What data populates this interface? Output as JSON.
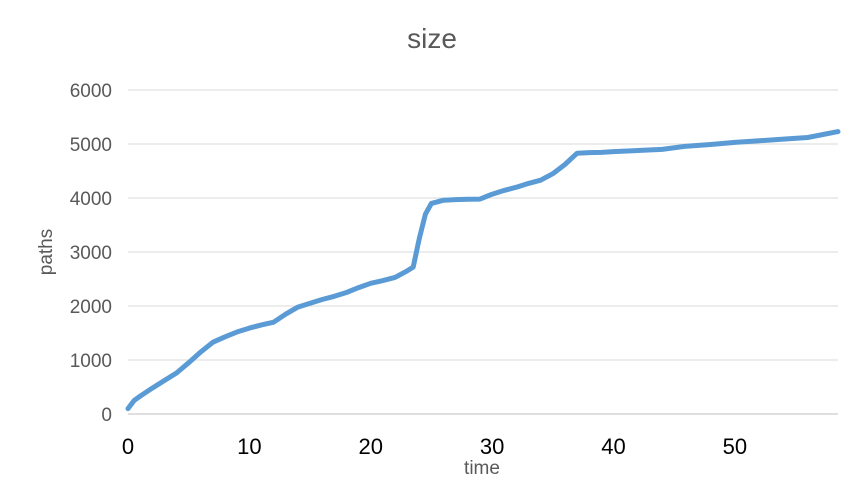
{
  "chart_data": {
    "type": "line",
    "title": "size",
    "xlabel": "time",
    "ylabel": "paths",
    "xlim": [
      0,
      58.5
    ],
    "ylim": [
      0,
      6000
    ],
    "x_ticks": [
      0,
      10,
      20,
      30,
      40,
      50
    ],
    "y_ticks": [
      0,
      1000,
      2000,
      3000,
      4000,
      5000,
      6000
    ],
    "grid": true,
    "legend": "none",
    "colors": {
      "series": "#5b9bd5",
      "grid": "#d9d9d9",
      "title": "#595959"
    },
    "series": [
      {
        "x": [
          0,
          0.5,
          1,
          2,
          3,
          4,
          5,
          6,
          7,
          8,
          9,
          10,
          11,
          12,
          13,
          14,
          15,
          16,
          17,
          18,
          19,
          20,
          21,
          22,
          23,
          23.5,
          24,
          24.5,
          25,
          26,
          27,
          28,
          29,
          30,
          31,
          32,
          33,
          34,
          35,
          36,
          37,
          38,
          39,
          40,
          42,
          44,
          46,
          48,
          50,
          52,
          54,
          56,
          58.5
        ],
        "y": [
          100,
          250,
          330,
          480,
          620,
          760,
          950,
          1150,
          1330,
          1430,
          1520,
          1590,
          1650,
          1700,
          1850,
          1980,
          2050,
          2120,
          2180,
          2250,
          2340,
          2420,
          2470,
          2530,
          2650,
          2720,
          3250,
          3700,
          3900,
          3960,
          3970,
          3975,
          3980,
          4070,
          4140,
          4200,
          4270,
          4330,
          4450,
          4620,
          4830,
          4840,
          4845,
          4860,
          4880,
          4900,
          4960,
          4990,
          5030,
          5060,
          5090,
          5120,
          5230
        ]
      }
    ]
  }
}
